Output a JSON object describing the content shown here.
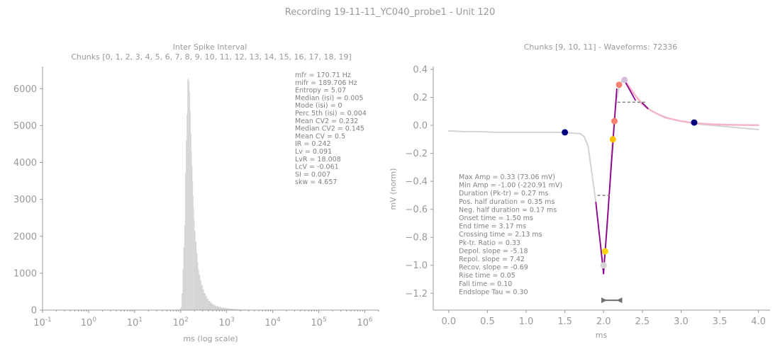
{
  "figure": {
    "suptitle": "Recording 19-11-11_YC040_probe1 - Unit 120"
  },
  "chart_data": [
    {
      "type": "histogram",
      "title": "Inter Spike Interval",
      "subtitle": "Chunks [0, 1, 2, 3, 4, 5, 6, 7, 8, 9, 10, 11, 12, 13, 14, 15, 16, 17, 18, 19]",
      "xlabel": "ms (log scale)",
      "ylabel": "",
      "xscale": "log",
      "xlim": [
        0.1,
        2000000
      ],
      "ylim": [
        0,
        6600
      ],
      "xticks": [
        "10^-1",
        "10^0",
        "10^1",
        "10^2",
        "10^3",
        "10^4",
        "10^5",
        "10^6"
      ],
      "yticks": [
        0,
        1000,
        2000,
        3000,
        4000,
        5000,
        6000
      ],
      "bar_color": "#d3d3d3",
      "bins": [
        [
          95,
          30
        ],
        [
          100,
          80
        ],
        [
          105,
          450
        ],
        [
          110,
          1100
        ],
        [
          115,
          1700
        ],
        [
          120,
          2300
        ],
        [
          125,
          3700
        ],
        [
          130,
          4600
        ],
        [
          135,
          5300
        ],
        [
          140,
          6250
        ],
        [
          145,
          6300
        ],
        [
          150,
          6200
        ],
        [
          155,
          5900
        ],
        [
          160,
          5400
        ],
        [
          165,
          4800
        ],
        [
          170,
          4300
        ],
        [
          175,
          3900
        ],
        [
          180,
          3500
        ],
        [
          185,
          3100
        ],
        [
          190,
          2750
        ],
        [
          195,
          2450
        ],
        [
          200,
          2150
        ],
        [
          210,
          1850
        ],
        [
          220,
          1550
        ],
        [
          230,
          1300
        ],
        [
          240,
          1100
        ],
        [
          250,
          950
        ],
        [
          265,
          800
        ],
        [
          280,
          680
        ],
        [
          300,
          560
        ],
        [
          320,
          460
        ],
        [
          345,
          380
        ],
        [
          370,
          310
        ],
        [
          400,
          250
        ],
        [
          440,
          200
        ],
        [
          480,
          160
        ],
        [
          530,
          130
        ],
        [
          590,
          105
        ],
        [
          660,
          85
        ],
        [
          750,
          70
        ],
        [
          850,
          58
        ],
        [
          980,
          48
        ],
        [
          1150,
          38
        ],
        [
          1350,
          30
        ],
        [
          1600,
          22
        ],
        [
          2000,
          15
        ],
        [
          2500,
          10
        ],
        [
          3200,
          6
        ],
        [
          4200,
          4
        ],
        [
          6000,
          2
        ]
      ],
      "stats": [
        "mfr = 170.71 Hz",
        "mifr = 189.706 Hz",
        "Entropy = 5.07",
        "Median (isi) = 0.005",
        "Mode (isi) = 0",
        "Perc 5th (isi) = 0.004",
        "Mean CV2 = 0.232",
        "Median CV2 = 0.145",
        "Mean CV = 0.5",
        "IR = 0.242",
        "Lv = 0.091",
        "LvR = 18.008",
        "LcV = -0.061",
        "SI = 0.007",
        "skw = 4.657"
      ]
    },
    {
      "type": "line",
      "title": "Chunks [9, 10, 11] - Waveforms: 72336",
      "xlabel": "ms",
      "ylabel": "mV (norm)",
      "xlim": [
        -0.2,
        4.15
      ],
      "ylim": [
        -1.32,
        0.42
      ],
      "xticks": [
        0.0,
        0.5,
        1.0,
        1.5,
        2.0,
        2.5,
        3.0,
        3.5,
        4.0
      ],
      "yticks": [
        0.4,
        0.2,
        0.0,
        -0.2,
        -0.4,
        -0.6,
        -0.8,
        -1.0,
        -1.2
      ],
      "series": [
        {
          "color": "#d3d3d3",
          "x": [
            0.0,
            0.2,
            0.4,
            0.6,
            0.8,
            1.0,
            1.2,
            1.4,
            1.6,
            1.7,
            1.75,
            1.8,
            1.85,
            1.9,
            1.95,
            2.0,
            2.05,
            2.1,
            2.15,
            2.2,
            2.25,
            2.3,
            2.4,
            2.5,
            2.6,
            2.7,
            2.8,
            2.9,
            3.0,
            3.2,
            3.4,
            3.6,
            3.8,
            4.0
          ],
          "y": [
            -0.04,
            -0.045,
            -0.045,
            -0.05,
            -0.05,
            -0.05,
            -0.05,
            -0.05,
            -0.055,
            -0.06,
            -0.08,
            -0.15,
            -0.35,
            -0.55,
            -0.8,
            -1.0,
            -0.72,
            -0.2,
            0.12,
            0.28,
            0.33,
            0.3,
            0.22,
            0.16,
            0.11,
            0.08,
            0.06,
            0.04,
            0.03,
            0.01,
            0.0,
            -0.01,
            -0.02,
            -0.03
          ]
        },
        {
          "color": "#f4b6c6",
          "x": [
            2.3,
            2.4,
            2.5,
            2.6,
            2.7,
            2.8,
            3.0,
            3.2,
            3.4,
            3.6,
            3.8,
            4.0
          ],
          "y": [
            0.3,
            0.22,
            0.15,
            0.11,
            0.08,
            0.055,
            0.03,
            0.015,
            0.008,
            0.004,
            0.002,
            0.001
          ]
        },
        {
          "color": "#8b008b",
          "x": [
            1.9,
            2.0
          ],
          "y": [
            -0.55,
            -1.06
          ]
        },
        {
          "color": "#8b008b",
          "x": [
            2.0,
            2.17
          ],
          "y": [
            -1.06,
            0.26
          ]
        },
        {
          "color": "#8b008b",
          "x": [
            2.27,
            2.41
          ],
          "y": [
            0.32,
            0.18
          ]
        },
        {
          "color": "#8b008b",
          "x": [
            2.5,
            2.57
          ],
          "y": [
            0.16,
            0.12
          ]
        }
      ],
      "half_width_lines": [
        {
          "x": [
            1.92,
            2.08
          ],
          "y": -0.5
        },
        {
          "x": [
            2.18,
            2.55
          ],
          "y": 0.165
        }
      ],
      "markers": [
        {
          "x": 1.5,
          "y": -0.05,
          "color": "#000080"
        },
        {
          "x": 3.17,
          "y": 0.02,
          "color": "#000080"
        },
        {
          "x": 2.02,
          "y": -0.9,
          "color": "#ffd700"
        },
        {
          "x": 2.12,
          "y": -0.1,
          "color": "#ffc000"
        },
        {
          "x": 2.0,
          "y": -1.0,
          "color": "#d3d3d3"
        },
        {
          "x": 2.14,
          "y": 0.03,
          "color": "#fa8072"
        },
        {
          "x": 2.2,
          "y": 0.29,
          "color": "#fa8072"
        },
        {
          "x": 2.27,
          "y": 0.325,
          "color": "#d8bfd8"
        }
      ],
      "duration_marker": {
        "x": [
          1.97,
          2.24
        ],
        "y": -1.25
      },
      "stats": [
        "Max Amp = 0.33 (73.06 mV)",
        "Min Amp = -1.00 (-220.91 mV)",
        "Duration (Pk-tr) = 0.27 ms",
        "Pos. half duration = 0.35 ms",
        "Neg. half duration = 0.17 ms",
        "Onset time = 1.50 ms",
        "End time = 3.17 ms",
        "Crossing time = 2.13 ms",
        "Pk-tr. Ratio = 0.33",
        "Depol. slope = -5.18",
        "Repol. slope = 7.42",
        "Recov. slope = -0.69",
        "Rise time = 0.05",
        "Fall time = 0.10",
        "Endslope Tau = 0.30"
      ]
    }
  ]
}
